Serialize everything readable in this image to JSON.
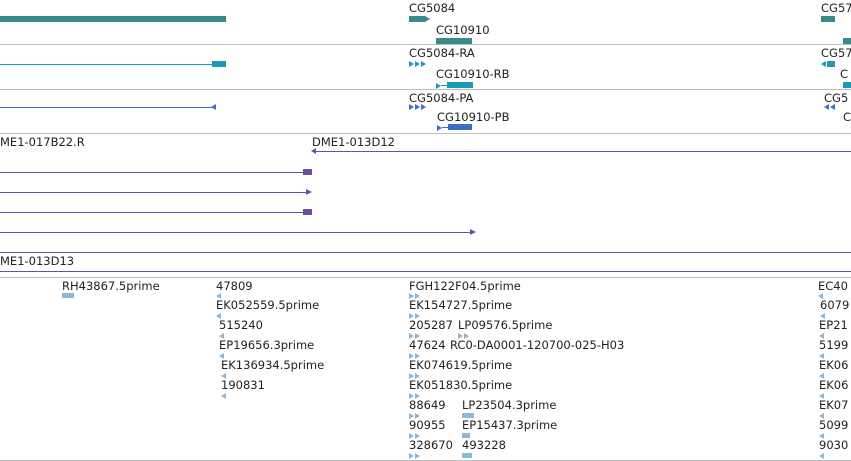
{
  "colors": {
    "gene": "#3a8a8a",
    "transcript": "#1a9bb5",
    "protein": "#3a6fc4",
    "clone": "#6a4fa0",
    "est": "#8ab8d8",
    "divider": "#bdbdbd"
  },
  "tracks": {
    "genes": {
      "labels": [
        "CG5084",
        "CG10910",
        "CG57"
      ]
    },
    "transcripts": {
      "labels": [
        "CG5084-RA",
        "CG10910-RB",
        "CG57",
        "C"
      ]
    },
    "proteins": {
      "labels": [
        "CG5084-PA",
        "CG10910-PB",
        "CG5",
        "C"
      ]
    },
    "clones": {
      "labels": [
        "ME1-017B22.R",
        "DME1-013D12",
        "ME1-013D13"
      ]
    },
    "ests": {
      "labels": [
        "RH43867.5prime",
        "47809",
        "EK052559.5prime",
        "515240",
        "EP19656.3prime",
        "EK136934.5prime",
        "190831",
        "FGH122F04.5prime",
        "EK154727.5prime",
        "205287",
        "LP09576.5prime",
        "47624",
        "RC0-DA0001-120700-025-H03",
        "EK074619.5prime",
        "EK051830.5prime",
        "88649",
        "LP23504.3prime",
        "90955",
        "EP15437.3prime",
        "328670",
        "493228",
        "EC40",
        "6079",
        "EP21",
        "5199",
        "EK06",
        "EK06",
        "EK07",
        "5099",
        "9030"
      ]
    }
  }
}
